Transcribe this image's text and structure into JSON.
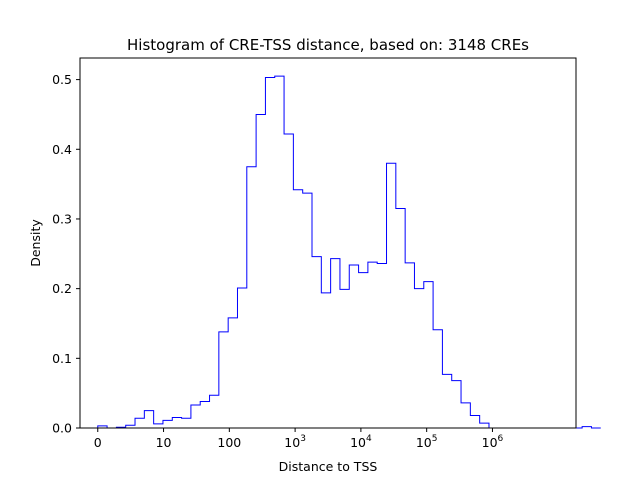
{
  "chart_data": {
    "type": "histogram",
    "title": "Histogram of CRE-TSS distance, based on: 3148 CREs",
    "xlabel": "Distance to TSS",
    "ylabel": "Density",
    "x_scale": "log10(distance + 1)",
    "xlim": [
      -0.27,
      7.27
    ],
    "ylim": [
      0,
      0.531
    ],
    "x_ticks": [
      {
        "base": "0",
        "exp": "",
        "value": 0
      },
      {
        "base": "10",
        "exp": "",
        "value": 1
      },
      {
        "base": "100",
        "exp": "",
        "value": 2
      },
      {
        "base": "10",
        "exp": "3",
        "value": 3
      },
      {
        "base": "10",
        "exp": "4",
        "value": 4
      },
      {
        "base": "10",
        "exp": "5",
        "value": 5
      },
      {
        "base": "10",
        "exp": "6",
        "value": 6
      }
    ],
    "y_ticks": [
      "0.0",
      "0.1",
      "0.2",
      "0.3",
      "0.4",
      "0.5"
    ],
    "y_tick_values": [
      0,
      0.1,
      0.2,
      0.3,
      0.4,
      0.5
    ],
    "bin_edges_start": 0,
    "bin_width": 0.1416,
    "values": [
      0.003,
      0.0,
      0.001,
      0.004,
      0.014,
      0.025,
      0.006,
      0.011,
      0.015,
      0.014,
      0.033,
      0.038,
      0.047,
      0.138,
      0.158,
      0.201,
      0.375,
      0.45,
      0.503,
      0.505,
      0.422,
      0.342,
      0.337,
      0.246,
      0.194,
      0.243,
      0.199,
      0.234,
      0.223,
      0.238,
      0.236,
      0.38,
      0.315,
      0.237,
      0.2,
      0.21,
      0.141,
      0.077,
      0.068,
      0.036,
      0.018,
      0.007,
      0.0,
      0.0,
      0.0,
      0.0,
      0.0,
      0.0,
      0.0,
      0.0,
      0.0,
      0.0,
      0.002,
      0.0
    ],
    "line_color": "#0000ff",
    "grid": false
  }
}
